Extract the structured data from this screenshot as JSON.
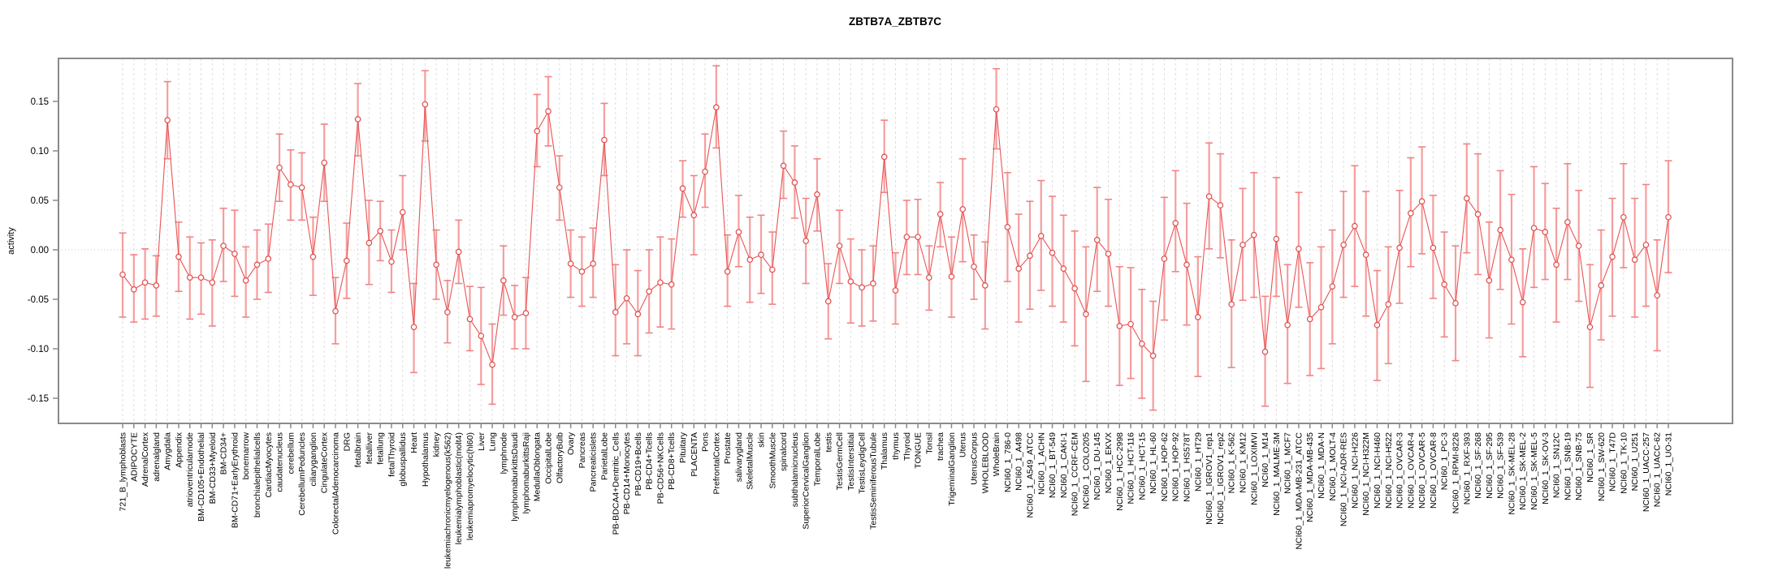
{
  "chart_data": {
    "type": "line",
    "title": "ZBTB7A_ZBTB7C",
    "xlabel": "",
    "ylabel": "activity",
    "ylim": [
      -0.175,
      0.195
    ],
    "ytick_labels": [
      "0.15",
      "0.10",
      "0.05",
      "0.00",
      "-0.05",
      "-0.10",
      "-0.15"
    ],
    "legend": "none",
    "grid": "light dashed vertical gridline at every category; dotted horizontal line at 0",
    "marker": "open circle with confidence-interval error bars",
    "series_name": "activity",
    "categories": [
      "721_B_lymphoblasts",
      "ADIPOCYTE",
      "AdrenalCortex",
      "adrenalgland",
      "Amygdala",
      "Appendix",
      "atrioventricularnode",
      "BM-CD105+Endothelial",
      "BM-CD33+Myeloid",
      "BM-CD34+",
      "BM-CD71+EarlyErythroid",
      "bonemarrow",
      "bronchialepithelialcells",
      "CardiacMyocytes",
      "caudatenucleus",
      "cerebellum",
      "CerebellumPeduncles",
      "ciliaryganglion",
      "CingulateCortex",
      "ColorectalAdenocarcinoma",
      "DRG",
      "fetalbrain",
      "fetalliver",
      "fetallung",
      "fetalThyroid",
      "globuspallidus",
      "Heart",
      "Hypothalamus",
      "kidney",
      "leukemiachronicmyelogenous(k562)",
      "leukemialymphoblastic(molt4)",
      "leukemiapromyelocytic(hl60)",
      "Liver",
      "Lung",
      "lymphnode",
      "lymphomaburkittsDaudi",
      "lymphomaburkittsRaji",
      "MedullaOblongata",
      "OccipitalLobe",
      "OlfactoryBulb",
      "Ovary",
      "Pancreas",
      "Pancreaticislets",
      "ParietalLobe",
      "PB-BDCA4+Dentritic_Cells",
      "PB-CD14+Monocytes",
      "PB-CD19+Bcells",
      "PB-CD4+Tcells",
      "PB-CD56+NKCells",
      "PB-CD8+Tcells",
      "Pituitary",
      "PLACENTA",
      "Pons",
      "PrefrontalCortex",
      "Prostate",
      "salivarygland",
      "SkeletalMuscle",
      "skin",
      "SmoothMuscle",
      "spinalcord",
      "subthalamicnucleus",
      "SuperiorCervicalGanglion",
      "TemporalLobe",
      "testis",
      "TestisGermCell",
      "TestisInterstitial",
      "TestisLeydigCell",
      "TestisSeminiferousTubule",
      "Thalamus",
      "thymus",
      "Thyroid",
      "TONGUE",
      "Tonsil",
      "trachea",
      "TrigeminalGanglion",
      "Uterus",
      "UterusCorpus",
      "WHOLEBLOOD",
      "WholeBrain",
      "NCI60_1_786-0",
      "NCI60_1_A498",
      "NCI60_1_A549_ATCC",
      "NCI60_1_ACHN",
      "NCI60_1_BT-549",
      "NCI60_1_CAKI-1",
      "NCI60_1_CCRF-CEM",
      "NCI60_1_COLO205",
      "NCI60_1_DU-145",
      "NCI60_1_EKVX",
      "NCI60_1_HCC-2998",
      "NCI60_1_HCT-116",
      "NCI60_1_HCT-15",
      "NCI60_1_HL-60",
      "NCI60_1_HOP-62",
      "NCI60_1_HOP-92",
      "NCI60_1_HS578T",
      "NCI60_1_HT29",
      "NCI60_1_IGROV1_rep1",
      "NCI60_1_IGROV1_rep2",
      "NCI60_1_K-562",
      "NCI60_1_KM12",
      "NCI60_1_LOXIMVI",
      "NCI60_1_M14",
      "NCI60_1_MALME-3M",
      "NCI60_1_MCF7",
      "NCI60_1_MDA-MB-231_ATCC",
      "NCI60_1_MDA-MB-435",
      "NCI60_1_MDA-N",
      "NCI60_1_MOLT-4",
      "NCI60_1_NCI-ADR-RES",
      "NCI60_1_NCI-H226",
      "NCI60_1_NCI-H322M",
      "NCI60_1_NCI-H460",
      "NCI60_1_NCI-H522",
      "NCI60_1_OVCAR-3",
      "NCI60_1_OVCAR-4",
      "NCI60_1_OVCAR-5",
      "NCI60_1_OVCAR-8",
      "NCI60_1_PC-3",
      "NCI60_1_RPMI-8226",
      "NCI60_1_RXF-393",
      "NCI60_1_SF-268",
      "NCI60_1_SF-295",
      "NCI60_1_SF-539",
      "NCI60_1_SK-MEL-28",
      "NCI60_1_SK-MEL-2",
      "NCI60_1_SK-MEL-5",
      "NCI60_1_SK-OV-3",
      "NCI60_1_SN12C",
      "NCI60_1_SNB-19",
      "NCI60_1_SNB-75",
      "NCI60_1_SR",
      "NCI60_1_SW-620",
      "NCI60_1_T47D",
      "NCI60_1_TK-10",
      "NCI60_1_U251",
      "NCI60_1_UACC-257",
      "NCI60_1_UACC-62",
      "NCI60_1_UO-31"
    ],
    "values": [
      -0.025,
      -0.04,
      -0.033,
      -0.036,
      0.131,
      -0.007,
      -0.028,
      -0.028,
      -0.033,
      0.004,
      -0.004,
      -0.031,
      -0.015,
      -0.009,
      0.083,
      0.066,
      0.063,
      -0.007,
      0.088,
      -0.062,
      -0.011,
      0.132,
      0.007,
      0.019,
      -0.012,
      0.038,
      -0.078,
      0.147,
      -0.015,
      -0.063,
      -0.002,
      -0.07,
      -0.087,
      -0.116,
      -0.031,
      -0.068,
      -0.064,
      0.12,
      0.14,
      0.063,
      -0.014,
      -0.022,
      -0.014,
      0.111,
      -0.063,
      -0.049,
      -0.065,
      -0.042,
      -0.033,
      -0.035,
      0.062,
      0.035,
      0.079,
      0.144,
      -0.022,
      0.018,
      -0.01,
      -0.005,
      -0.02,
      0.085,
      0.068,
      0.009,
      0.056,
      -0.052,
      0.004,
      -0.032,
      -0.038,
      -0.034,
      0.094,
      -0.041,
      0.013,
      0.013,
      -0.028,
      0.036,
      -0.027,
      0.041,
      -0.017,
      -0.036,
      0.142,
      0.023,
      -0.019,
      -0.006,
      0.014,
      -0.003,
      -0.019,
      -0.039,
      -0.065,
      0.01,
      -0.004,
      -0.077,
      -0.075,
      -0.095,
      -0.107,
      -0.009,
      0.027,
      -0.015,
      -0.068,
      0.054,
      0.045,
      -0.055,
      0.005,
      0.015,
      -0.103,
      0.011,
      -0.076,
      0.001,
      -0.07,
      -0.058,
      -0.037,
      0.005,
      0.024,
      -0.005,
      -0.076,
      -0.055,
      0.002,
      0.037,
      0.049,
      0.002,
      -0.035,
      -0.054,
      0.052,
      0.036,
      -0.031,
      0.02,
      -0.01,
      -0.053,
      0.022,
      0.018,
      -0.015,
      0.028,
      0.004,
      -0.078,
      -0.036,
      -0.007,
      0.033,
      -0.01,
      0.005,
      -0.046,
      0.033
    ],
    "ci_low": [
      -0.068,
      -0.073,
      -0.07,
      -0.067,
      0.092,
      -0.042,
      -0.07,
      -0.065,
      -0.077,
      -0.032,
      -0.047,
      -0.068,
      -0.05,
      -0.043,
      0.049,
      0.03,
      0.03,
      -0.046,
      0.049,
      -0.095,
      -0.049,
      0.095,
      -0.035,
      -0.011,
      -0.043,
      0.0,
      -0.124,
      0.11,
      -0.05,
      -0.094,
      -0.034,
      -0.102,
      -0.136,
      -0.156,
      -0.066,
      -0.1,
      -0.1,
      0.084,
      0.105,
      0.03,
      -0.048,
      -0.057,
      -0.048,
      0.075,
      -0.107,
      -0.095,
      -0.107,
      -0.084,
      -0.078,
      -0.08,
      0.033,
      -0.005,
      0.043,
      0.103,
      -0.057,
      -0.017,
      -0.053,
      -0.044,
      -0.055,
      0.052,
      0.032,
      -0.034,
      0.019,
      -0.09,
      -0.034,
      -0.074,
      -0.077,
      -0.072,
      0.058,
      -0.075,
      -0.025,
      -0.025,
      -0.061,
      0.003,
      -0.068,
      -0.012,
      -0.05,
      -0.08,
      0.102,
      -0.032,
      -0.073,
      -0.06,
      -0.041,
      -0.057,
      -0.073,
      -0.097,
      -0.133,
      -0.042,
      -0.057,
      -0.137,
      -0.13,
      -0.15,
      -0.162,
      -0.071,
      -0.022,
      -0.076,
      -0.128,
      0.001,
      -0.008,
      -0.119,
      -0.051,
      -0.048,
      -0.158,
      -0.047,
      -0.135,
      -0.058,
      -0.127,
      -0.12,
      -0.095,
      -0.048,
      -0.037,
      -0.067,
      -0.132,
      -0.115,
      -0.054,
      -0.017,
      -0.004,
      -0.049,
      -0.088,
      -0.112,
      -0.003,
      -0.025,
      -0.089,
      -0.04,
      -0.075,
      -0.108,
      -0.038,
      -0.03,
      -0.073,
      -0.03,
      -0.052,
      -0.139,
      -0.091,
      -0.067,
      -0.018,
      -0.068,
      -0.057,
      -0.102,
      -0.023
    ],
    "ci_high": [
      0.017,
      -0.005,
      0.001,
      -0.006,
      0.17,
      0.028,
      0.013,
      0.007,
      0.01,
      0.042,
      0.04,
      0.003,
      0.02,
      0.026,
      0.117,
      0.101,
      0.098,
      0.033,
      0.127,
      -0.028,
      0.027,
      0.168,
      0.05,
      0.049,
      0.02,
      0.075,
      -0.034,
      0.181,
      0.02,
      -0.031,
      0.03,
      -0.037,
      -0.038,
      -0.075,
      0.004,
      -0.036,
      -0.028,
      0.157,
      0.175,
      0.095,
      0.02,
      0.013,
      0.022,
      0.148,
      -0.015,
      0.0,
      -0.021,
      0.0,
      0.013,
      0.011,
      0.09,
      0.075,
      0.117,
      0.186,
      0.015,
      0.055,
      0.033,
      0.035,
      0.018,
      0.12,
      0.105,
      0.052,
      0.092,
      -0.014,
      0.04,
      0.011,
      0.0,
      0.004,
      0.131,
      -0.003,
      0.05,
      0.051,
      0.004,
      0.068,
      0.013,
      0.092,
      0.015,
      0.008,
      0.183,
      0.078,
      0.036,
      0.049,
      0.07,
      0.054,
      0.035,
      0.019,
      0.003,
      0.063,
      0.051,
      -0.017,
      -0.018,
      -0.04,
      -0.052,
      0.053,
      0.08,
      0.047,
      -0.007,
      0.108,
      0.097,
      0.01,
      0.062,
      0.078,
      -0.047,
      0.073,
      -0.015,
      0.058,
      -0.013,
      0.003,
      0.02,
      0.059,
      0.085,
      0.059,
      -0.021,
      0.003,
      0.06,
      0.093,
      0.104,
      0.055,
      0.018,
      0.004,
      0.107,
      0.097,
      0.028,
      0.08,
      0.056,
      0.001,
      0.084,
      0.067,
      0.042,
      0.087,
      0.06,
      -0.015,
      0.02,
      0.052,
      0.087,
      0.052,
      0.066,
      0.01,
      0.09
    ]
  },
  "colors": {
    "whisker": "#F59E9E",
    "whisker_cap": "#F08484",
    "line": "#E95454",
    "point_stroke": "#E24A4A",
    "point_fill": "#FFFFFF",
    "gridline": "#DEDEDE",
    "zero_line": "#C9C9C9",
    "frame": "#8A8A8A",
    "text": "#000000",
    "background": "#FFFFFF"
  }
}
